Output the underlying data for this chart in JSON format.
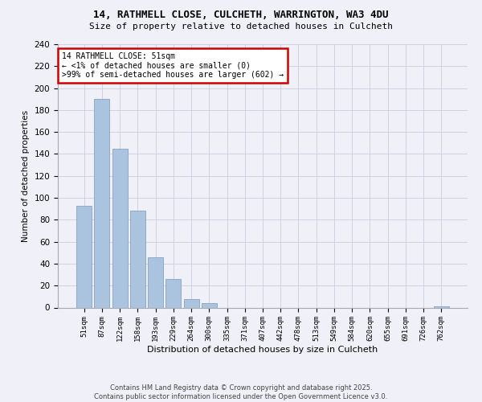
{
  "title": "14, RATHMELL CLOSE, CULCHETH, WARRINGTON, WA3 4DU",
  "subtitle": "Size of property relative to detached houses in Culcheth",
  "xlabel": "Distribution of detached houses by size in Culcheth",
  "ylabel": "Number of detached properties",
  "bar_labels": [
    "51sqm",
    "87sqm",
    "122sqm",
    "158sqm",
    "193sqm",
    "229sqm",
    "264sqm",
    "300sqm",
    "335sqm",
    "371sqm",
    "407sqm",
    "442sqm",
    "478sqm",
    "513sqm",
    "549sqm",
    "584sqm",
    "620sqm",
    "655sqm",
    "691sqm",
    "726sqm",
    "762sqm"
  ],
  "bar_values": [
    93,
    190,
    145,
    88,
    46,
    26,
    8,
    4,
    0,
    0,
    0,
    0,
    0,
    0,
    0,
    0,
    0,
    0,
    0,
    0,
    1
  ],
  "bar_color": "#aac4e0",
  "bar_edgecolor": "#7799bb",
  "ylim": [
    0,
    240
  ],
  "yticks": [
    0,
    20,
    40,
    60,
    80,
    100,
    120,
    140,
    160,
    180,
    200,
    220,
    240
  ],
  "annotation_title": "14 RATHMELL CLOSE: 51sqm",
  "annotation_line2": "← <1% of detached houses are smaller (0)",
  "annotation_line3": ">99% of semi-detached houses are larger (602) →",
  "annotation_box_edgecolor": "#cc0000",
  "footer1": "Contains HM Land Registry data © Crown copyright and database right 2025.",
  "footer2": "Contains public sector information licensed under the Open Government Licence v3.0.",
  "bg_color": "#f0f0f8",
  "grid_color": "#ccccdd"
}
